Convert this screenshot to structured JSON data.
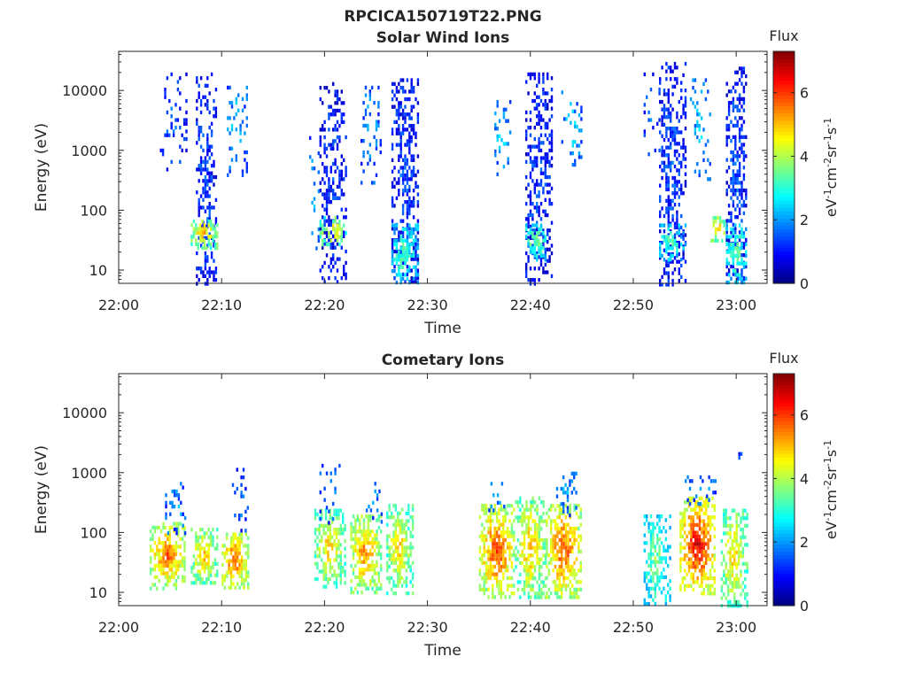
{
  "figure_title": "RPCICA150719T22.PNG",
  "x_axis_label": "Time",
  "y_axis_label": "Energy (eV)",
  "x_tick_labels": [
    "22:00",
    "22:10",
    "22:20",
    "22:30",
    "22:40",
    "22:50",
    "23:00"
  ],
  "y_tick_labels": [
    "10",
    "100",
    "1000",
    "10000"
  ],
  "colorbar": {
    "title": "Flux",
    "tick_labels": [
      "0",
      "2",
      "4",
      "6"
    ],
    "range": [
      0,
      7.3
    ],
    "colormap": "jet",
    "colors": [
      "#00008f",
      "#0000ff",
      "#00ffff",
      "#ffff00",
      "#ff0000",
      "#800000"
    ]
  },
  "chart_data": [
    {
      "type": "heatmap",
      "title": "Solar Wind Ions",
      "xlabel": "Time",
      "ylabel": "Energy (eV)",
      "xlim": [
        "22:00",
        "23:03"
      ],
      "ylim": [
        6,
        45000
      ],
      "y_scale": "log",
      "grid": false,
      "colorbar_title": "Flux",
      "colorbar_range": [
        0,
        7.3
      ],
      "bursts": [
        {
          "t_start": "22:04.0",
          "t_end": "22:06.5",
          "e_min": 500,
          "e_max": 20000,
          "flux": 1.6,
          "density": 0.25
        },
        {
          "t_start": "22:07.5",
          "t_end": "22:09.5",
          "e_min": 6,
          "e_max": 20000,
          "flux": 1.5,
          "density": 0.55
        },
        {
          "t_start": "22:07.0",
          "t_end": "22:09.5",
          "e_min": 25,
          "e_max": 70,
          "flux": 5.2,
          "density": 0.9
        },
        {
          "t_start": "22:10.5",
          "t_end": "22:12.5",
          "e_min": 400,
          "e_max": 12000,
          "flux": 2.4,
          "density": 0.35
        },
        {
          "t_start": "22:18.5",
          "t_end": "22:19.5",
          "e_min": 20,
          "e_max": 2000,
          "flux": 2.2,
          "density": 0.12
        },
        {
          "t_start": "22:19.5",
          "t_end": "22:22.0",
          "e_min": 6,
          "e_max": 16000,
          "flux": 1.3,
          "density": 0.5
        },
        {
          "t_start": "22:19.5",
          "t_end": "22:22.0",
          "e_min": 25,
          "e_max": 80,
          "flux": 4.8,
          "density": 0.8
        },
        {
          "t_start": "22:23.5",
          "t_end": "22:25.5",
          "e_min": 300,
          "e_max": 12000,
          "flux": 2.2,
          "density": 0.3
        },
        {
          "t_start": "22:26.5",
          "t_end": "22:29.0",
          "e_min": 6,
          "e_max": 16000,
          "flux": 1.4,
          "density": 0.6
        },
        {
          "t_start": "22:26.5",
          "t_end": "22:29.0",
          "e_min": 6,
          "e_max": 60,
          "flux": 3.4,
          "density": 0.7
        },
        {
          "t_start": "22:36.5",
          "t_end": "22:38.0",
          "e_min": 400,
          "e_max": 8000,
          "flux": 2.6,
          "density": 0.3
        },
        {
          "t_start": "22:39.5",
          "t_end": "22:42.0",
          "e_min": 6,
          "e_max": 20000,
          "flux": 1.4,
          "density": 0.55
        },
        {
          "t_start": "22:39.5",
          "t_end": "22:41.5",
          "e_min": 15,
          "e_max": 60,
          "flux": 3.8,
          "density": 0.8
        },
        {
          "t_start": "22:43.0",
          "t_end": "22:45.0",
          "e_min": 600,
          "e_max": 10000,
          "flux": 2.5,
          "density": 0.25
        },
        {
          "t_start": "22:51.0",
          "t_end": "22:52.5",
          "e_min": 800,
          "e_max": 20000,
          "flux": 1.6,
          "density": 0.15
        },
        {
          "t_start": "22:52.5",
          "t_end": "22:55.0",
          "e_min": 6,
          "e_max": 30000,
          "flux": 1.5,
          "density": 0.55
        },
        {
          "t_start": "22:52.5",
          "t_end": "22:55.0",
          "e_min": 15,
          "e_max": 60,
          "flux": 3.4,
          "density": 0.7
        },
        {
          "t_start": "22:55.5",
          "t_end": "22:57.5",
          "e_min": 300,
          "e_max": 16000,
          "flux": 2.4,
          "density": 0.3
        },
        {
          "t_start": "22:57.5",
          "t_end": "22:59.0",
          "e_min": 30,
          "e_max": 80,
          "flux": 5.2,
          "density": 0.8
        },
        {
          "t_start": "22:59.0",
          "t_end": "23:01.0",
          "e_min": 6,
          "e_max": 25000,
          "flux": 1.5,
          "density": 0.6
        },
        {
          "t_start": "22:59.0",
          "t_end": "23:01.0",
          "e_min": 6,
          "e_max": 60,
          "flux": 3.6,
          "density": 0.7
        }
      ]
    },
    {
      "type": "heatmap",
      "title": "Cometary Ions",
      "xlabel": "Time",
      "ylabel": "Energy (eV)",
      "xlim": [
        "22:00",
        "23:03"
      ],
      "ylim": [
        6,
        45000
      ],
      "y_scale": "log",
      "grid": false,
      "colorbar_title": "Flux",
      "colorbar_range": [
        0,
        7.3
      ],
      "bursts": [
        {
          "t_start": "22:03.0",
          "t_end": "22:06.5",
          "e_min": 12,
          "e_max": 150,
          "flux": 5.8,
          "density": 0.9
        },
        {
          "t_start": "22:04.5",
          "t_end": "22:06.5",
          "e_min": 100,
          "e_max": 700,
          "flux": 2.2,
          "density": 0.3
        },
        {
          "t_start": "22:07.0",
          "t_end": "22:09.5",
          "e_min": 15,
          "e_max": 120,
          "flux": 5.2,
          "density": 0.9
        },
        {
          "t_start": "22:10.0",
          "t_end": "22:12.5",
          "e_min": 12,
          "e_max": 100,
          "flux": 6.0,
          "density": 0.9
        },
        {
          "t_start": "22:11.0",
          "t_end": "22:12.5",
          "e_min": 100,
          "e_max": 1200,
          "flux": 2.0,
          "density": 0.25
        },
        {
          "t_start": "22:19.0",
          "t_end": "22:22.0",
          "e_min": 12,
          "e_max": 250,
          "flux": 5.0,
          "density": 0.85
        },
        {
          "t_start": "22:19.5",
          "t_end": "22:21.5",
          "e_min": 150,
          "e_max": 1400,
          "flux": 2.0,
          "density": 0.2
        },
        {
          "t_start": "22:22.5",
          "t_end": "22:25.5",
          "e_min": 10,
          "e_max": 200,
          "flux": 5.6,
          "density": 0.9
        },
        {
          "t_start": "22:24.0",
          "t_end": "22:25.5",
          "e_min": 150,
          "e_max": 700,
          "flux": 2.2,
          "density": 0.25
        },
        {
          "t_start": "22:26.0",
          "t_end": "22:28.5",
          "e_min": 10,
          "e_max": 300,
          "flux": 5.0,
          "density": 0.85
        },
        {
          "t_start": "22:35.0",
          "t_end": "22:38.5",
          "e_min": 8,
          "e_max": 300,
          "flux": 6.0,
          "density": 0.9
        },
        {
          "t_start": "22:35.5",
          "t_end": "22:37.5",
          "e_min": 200,
          "e_max": 700,
          "flux": 2.2,
          "density": 0.3
        },
        {
          "t_start": "22:38.5",
          "t_end": "22:41.5",
          "e_min": 8,
          "e_max": 400,
          "flux": 5.2,
          "density": 0.85
        },
        {
          "t_start": "22:41.5",
          "t_end": "22:45.0",
          "e_min": 8,
          "e_max": 300,
          "flux": 6.0,
          "density": 0.9
        },
        {
          "t_start": "22:42.5",
          "t_end": "22:44.5",
          "e_min": 200,
          "e_max": 1200,
          "flux": 2.2,
          "density": 0.25
        },
        {
          "t_start": "22:51.0",
          "t_end": "22:53.5",
          "e_min": 6,
          "e_max": 200,
          "flux": 3.8,
          "density": 0.75
        },
        {
          "t_start": "22:54.5",
          "t_end": "22:58.0",
          "e_min": 10,
          "e_max": 400,
          "flux": 6.6,
          "density": 0.9
        },
        {
          "t_start": "22:55.0",
          "t_end": "22:58.0",
          "e_min": 300,
          "e_max": 900,
          "flux": 2.2,
          "density": 0.3
        },
        {
          "t_start": "22:58.5",
          "t_end": "23:01.0",
          "e_min": 6,
          "e_max": 250,
          "flux": 5.0,
          "density": 0.8
        },
        {
          "t_start": "23:00.0",
          "t_end": "23:00.5",
          "e_min": 1800,
          "e_max": 2200,
          "flux": 1.6,
          "density": 0.5
        }
      ]
    }
  ]
}
